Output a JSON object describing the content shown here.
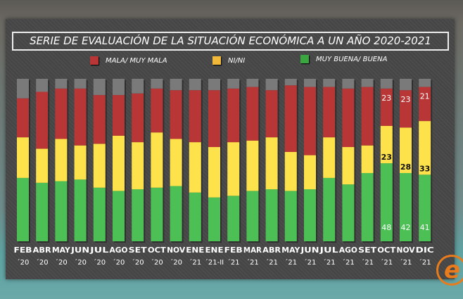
{
  "chart_data": {
    "type": "bar",
    "stacked": true,
    "title": "SERIE DE EVALUACIÓN DE LA SITUACIÓN ECONÓMICA A UN AÑO 2020-2021",
    "legend_position": "top",
    "categories": [
      {
        "month": "FEB",
        "year": "´20"
      },
      {
        "month": "ABR",
        "year": "´20"
      },
      {
        "month": "MAY",
        "year": "´20"
      },
      {
        "month": "JUN",
        "year": "´20"
      },
      {
        "month": "JUL",
        "year": "´20"
      },
      {
        "month": "AGO",
        "year": "´20"
      },
      {
        "month": "SET",
        "year": "´20"
      },
      {
        "month": "OCT",
        "year": "´20"
      },
      {
        "month": "NOV",
        "year": "´20"
      },
      {
        "month": "ENE",
        "year": "´21"
      },
      {
        "month": "ENE",
        "year": "´21-II"
      },
      {
        "month": "FEB",
        "year": "´21"
      },
      {
        "month": "MAR",
        "year": "´21"
      },
      {
        "month": "ABR",
        "year": "´21"
      },
      {
        "month": "MAY",
        "year": "´21"
      },
      {
        "month": "JUN",
        "year": "´21"
      },
      {
        "month": "JUL",
        "year": "´21"
      },
      {
        "month": "AGO",
        "year": "´21"
      },
      {
        "month": "SET",
        "year": "´21"
      },
      {
        "month": "OCT",
        "year": "´21"
      },
      {
        "month": "NOV",
        "year": "´21"
      },
      {
        "month": "DIC",
        "year": "´21"
      }
    ],
    "series": [
      {
        "name": "MUY BUENA/ BUENA",
        "color": "#4cbf55",
        "values": [
          39,
          36,
          37,
          38,
          33,
          31,
          32,
          33,
          34,
          30,
          27,
          28,
          31,
          32,
          31,
          32,
          39,
          35,
          42,
          48,
          42,
          41
        ]
      },
      {
        "name": "NI/NI",
        "color": "#fde24b",
        "values": [
          25,
          21,
          26,
          21,
          27,
          34,
          29,
          34,
          29,
          31,
          31,
          33,
          31,
          32,
          24,
          21,
          25,
          23,
          17,
          23,
          28,
          33
        ]
      },
      {
        "name": "MALA/ MUY MALA",
        "color": "#b93636",
        "values": [
          24,
          35,
          31,
          35,
          30,
          25,
          30,
          27,
          30,
          32,
          35,
          33,
          33,
          29,
          41,
          42,
          31,
          36,
          36,
          23,
          23,
          21
        ]
      },
      {
        "name": "",
        "color": "#7a7a7a",
        "values": [
          12,
          8,
          6,
          6,
          10,
          10,
          9,
          6,
          7,
          7,
          7,
          6,
          5,
          7,
          4,
          5,
          5,
          6,
          5,
          6,
          7,
          5
        ]
      }
    ],
    "data_labels_shown_for": [
      "OCT ´21",
      "NOV ´21",
      "DIC ´21"
    ],
    "ylim": [
      0,
      100
    ]
  },
  "legend": [
    {
      "label": "MALA/ MUY MALA",
      "color": "#b93636"
    },
    {
      "label": "NI/NI",
      "color": "#f0b93a"
    },
    {
      "label": "MUY BUENA/ BUENA",
      "color": "#3aa63f"
    }
  ],
  "logo": {
    "text": "e",
    "color": "#e87b1c"
  }
}
